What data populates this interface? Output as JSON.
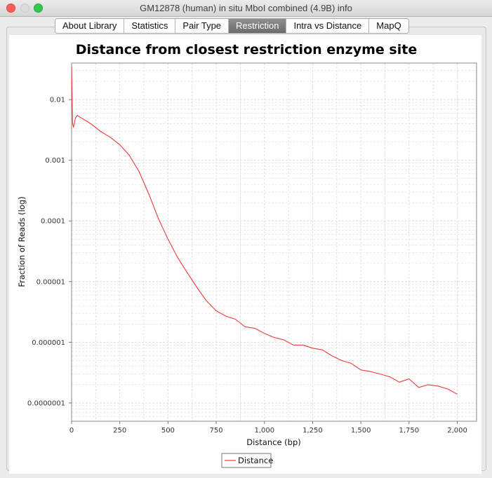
{
  "window": {
    "title": "GM12878 (human)  in situ MboI combined (4.9B) info"
  },
  "tabs": [
    {
      "label": "About Library",
      "active": false
    },
    {
      "label": "Statistics",
      "active": false
    },
    {
      "label": "Pair Type",
      "active": false
    },
    {
      "label": "Restriction",
      "active": true
    },
    {
      "label": "Intra vs Distance",
      "active": false
    },
    {
      "label": "MapQ",
      "active": false
    }
  ],
  "colors": {
    "series": "#ee3a3a",
    "active_tab": "#7b7b7b",
    "gridline": "#dcdcdc"
  },
  "chart_data": {
    "type": "line",
    "title": "Distance from closest restriction enzyme site",
    "xlabel": "Distance (bp)",
    "ylabel": "Fraction of Reads (log)",
    "y_scale": "log",
    "xlim": [
      0,
      2100
    ],
    "ylim": [
      5e-08,
      0.04
    ],
    "x_ticks": [
      {
        "value": 0,
        "label": "0"
      },
      {
        "value": 250,
        "label": "250"
      },
      {
        "value": 500,
        "label": "500"
      },
      {
        "value": 750,
        "label": "750"
      },
      {
        "value": 1000,
        "label": "1,000"
      },
      {
        "value": 1250,
        "label": "1,250"
      },
      {
        "value": 1500,
        "label": "1,500"
      },
      {
        "value": 1750,
        "label": "1,750"
      },
      {
        "value": 2000,
        "label": "2,000"
      }
    ],
    "y_ticks": [
      {
        "value": 0.01,
        "label": "0.01"
      },
      {
        "value": 0.001,
        "label": "0.001"
      },
      {
        "value": 0.0001,
        "label": "0.0001"
      },
      {
        "value": 1e-05,
        "label": "0.00001"
      },
      {
        "value": 1e-06,
        "label": "0.000001"
      },
      {
        "value": 1e-07,
        "label": "0.0000001"
      }
    ],
    "grid": true,
    "legend_position": "bottom",
    "series": [
      {
        "name": "Distance",
        "x": [
          0,
          5,
          10,
          20,
          30,
          50,
          100,
          150,
          200,
          250,
          300,
          350,
          400,
          450,
          500,
          550,
          600,
          650,
          700,
          750,
          800,
          850,
          900,
          950,
          1000,
          1050,
          1100,
          1150,
          1200,
          1250,
          1300,
          1350,
          1400,
          1450,
          1500,
          1550,
          1600,
          1650,
          1700,
          1750,
          1800,
          1850,
          1900,
          1950,
          2000
        ],
        "y": [
          0.035,
          0.004,
          0.0035,
          0.005,
          0.0055,
          0.005,
          0.004,
          0.003,
          0.0024,
          0.0018,
          0.0012,
          0.00065,
          0.00028,
          0.00011,
          5e-05,
          2.5e-05,
          1.4e-05,
          8e-06,
          4.8e-06,
          3.3e-06,
          2.7e-06,
          2.4e-06,
          1.8e-06,
          1.7e-06,
          1.4e-06,
          1.2e-06,
          1.1e-06,
          9e-07,
          9e-07,
          8e-07,
          7.5e-07,
          6e-07,
          5e-07,
          4.5e-07,
          3.5e-07,
          3.3e-07,
          3e-07,
          2.7e-07,
          2.2e-07,
          2.5e-07,
          1.8e-07,
          2e-07,
          1.9e-07,
          1.7e-07,
          1.4e-07
        ]
      }
    ]
  }
}
